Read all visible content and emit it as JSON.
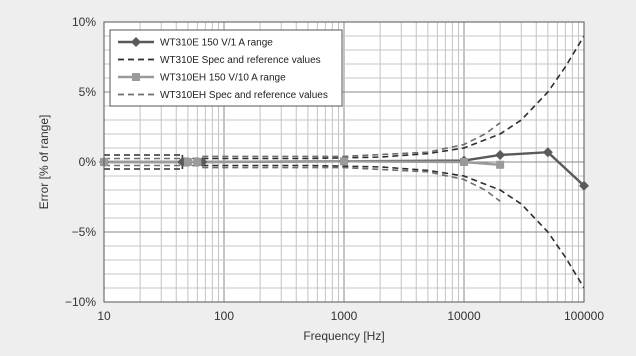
{
  "chart_data": {
    "type": "line",
    "title": "",
    "xlabel": "Frequency [Hz]",
    "ylabel": "Error [% of  range]",
    "x_scale": "log",
    "xlim": [
      10,
      100000
    ],
    "ylim": [
      -10,
      10
    ],
    "grid": true,
    "legend_position": "top-left",
    "x_ticks": [
      10,
      100,
      1000,
      10000,
      100000
    ],
    "x_tick_labels": [
      "10",
      "100",
      "1000",
      "10000",
      "100000"
    ],
    "y_ticks": [
      -10,
      -5,
      0,
      5,
      10
    ],
    "y_tick_labels": [
      "−10%",
      "−5%",
      "0%",
      "5%",
      "10%"
    ],
    "series": [
      {
        "name": "WT310E 150 V/1 A range",
        "style": "solid",
        "marker": "diamond",
        "color": "#5a5a5a",
        "x": [
          10,
          45,
          66,
          1000,
          10000,
          20000,
          50000,
          100000
        ],
        "y": [
          0.0,
          0.0,
          0.0,
          0.05,
          0.1,
          0.5,
          0.7,
          -1.7
        ]
      },
      {
        "name": "WT310E Spec and reference values",
        "style": "dashed",
        "color": "#2e2e2e",
        "bands": [
          {
            "x": [
              10,
              45
            ],
            "y": [
              0.5,
              0.5
            ]
          },
          {
            "x": [
              10,
              45
            ],
            "y": [
              -0.5,
              -0.5
            ]
          },
          {
            "x": [
              45,
              45
            ],
            "y": [
              -0.5,
              0.5
            ]
          },
          {
            "x": [
              45,
              66,
              500,
              1000,
              2000,
              5000,
              10000,
              20000,
              30000,
              50000,
              70000,
              100000
            ],
            "y": [
              0.25,
              0.25,
              0.25,
              0.3,
              0.35,
              0.6,
              1.0,
              2.0,
              3.0,
              5.0,
              6.8,
              9.0
            ]
          },
          {
            "x": [
              45,
              66,
              500,
              1000,
              2000,
              5000,
              10000,
              20000,
              30000,
              50000,
              70000,
              100000
            ],
            "y": [
              -0.25,
              -0.25,
              -0.25,
              -0.3,
              -0.35,
              -0.6,
              -1.0,
              -2.0,
              -3.0,
              -5.0,
              -6.8,
              -9.0
            ]
          }
        ]
      },
      {
        "name": "WT310EH 150 V/10 A range",
        "style": "solid",
        "marker": "square",
        "color": "#9a9a9a",
        "x": [
          10,
          50,
          60,
          1000,
          10000,
          20000
        ],
        "y": [
          0.0,
          0.0,
          0.0,
          0.05,
          0.0,
          -0.2
        ]
      },
      {
        "name": "WT310EH Spec and reference values",
        "style": "dashed",
        "color": "#6e6e6e",
        "bands": [
          {
            "x": [
              10,
              66
            ],
            "y": [
              0.25,
              0.25
            ]
          },
          {
            "x": [
              10,
              66
            ],
            "y": [
              -0.25,
              -0.25
            ]
          },
          {
            "x": [
              66,
              1000,
              5000,
              10000,
              15000,
              20000
            ],
            "y": [
              0.4,
              0.4,
              0.7,
              1.25,
              2.0,
              2.8
            ]
          },
          {
            "x": [
              66,
              1000,
              5000,
              10000,
              15000,
              20000
            ],
            "y": [
              -0.4,
              -0.4,
              -0.7,
              -1.25,
              -2.0,
              -2.8
            ]
          }
        ]
      }
    ]
  }
}
